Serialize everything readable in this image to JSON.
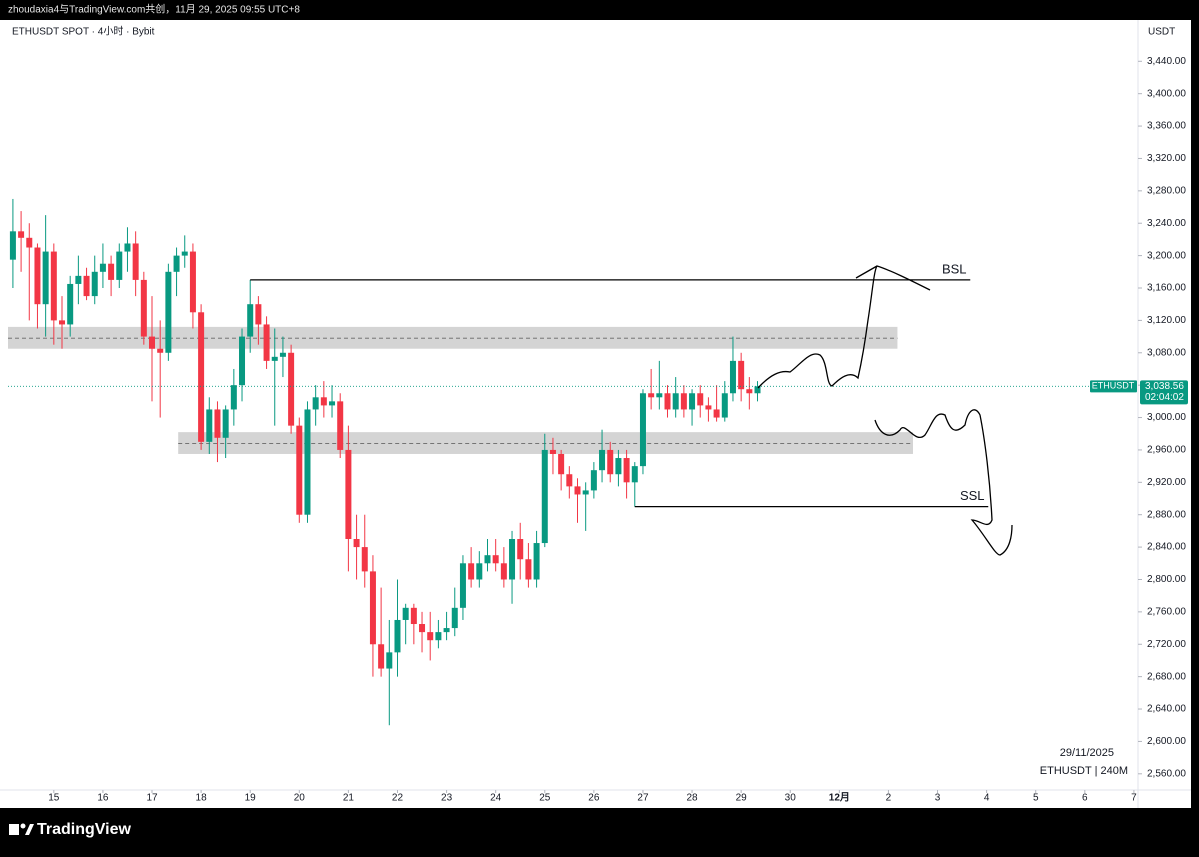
{
  "header": {
    "attribution": "zhoudaxia4与TradingView.com共创，11月 29, 2025 09:55 UTC+8"
  },
  "footer": {
    "brand": "TradingView"
  },
  "chart_data": {
    "type": "candlestick",
    "symbol": "ETHUSDT SPOT · 4小时 · Bybit",
    "currency": "USDT",
    "up_color": "#089981",
    "down_color": "#f23645",
    "xlim": [
      -5.6,
      132.5
    ],
    "ylim": [
      2540,
      3491
    ],
    "xticks": [
      {
        "value": 0,
        "label": "15"
      },
      {
        "value": 6,
        "label": "16"
      },
      {
        "value": 12,
        "label": "17"
      },
      {
        "value": 18,
        "label": "18"
      },
      {
        "value": 24,
        "label": "19"
      },
      {
        "value": 30,
        "label": "20"
      },
      {
        "value": 36,
        "label": "21"
      },
      {
        "value": 42,
        "label": "22"
      },
      {
        "value": 48,
        "label": "23"
      },
      {
        "value": 54,
        "label": "24"
      },
      {
        "value": 60,
        "label": "25"
      },
      {
        "value": 66,
        "label": "26"
      },
      {
        "value": 72,
        "label": "27"
      },
      {
        "value": 78,
        "label": "28"
      },
      {
        "value": 84,
        "label": "29"
      },
      {
        "value": 90,
        "label": "30"
      },
      {
        "value": 96,
        "label": "12月"
      },
      {
        "value": 102,
        "label": "2"
      },
      {
        "value": 108,
        "label": "3"
      },
      {
        "value": 114,
        "label": "4"
      },
      {
        "value": 120,
        "label": "5"
      },
      {
        "value": 126,
        "label": "6"
      },
      {
        "value": 132,
        "label": "7"
      }
    ],
    "yticks": [
      {
        "value": 2560,
        "label": "2,560.00"
      },
      {
        "value": 2600,
        "label": "2,600.00"
      },
      {
        "value": 2640,
        "label": "2,640.00"
      },
      {
        "value": 2680,
        "label": "2,680.00"
      },
      {
        "value": 2720,
        "label": "2,720.00"
      },
      {
        "value": 2760,
        "label": "2,760.00"
      },
      {
        "value": 2800,
        "label": "2,800.00"
      },
      {
        "value": 2840,
        "label": "2,840.00"
      },
      {
        "value": 2880,
        "label": "2,880.00"
      },
      {
        "value": 2920,
        "label": "2,920.00"
      },
      {
        "value": 2960,
        "label": "2,960.00"
      },
      {
        "value": 3000,
        "label": "3,000.00"
      },
      {
        "value": 3040,
        "label": "3,040.00"
      },
      {
        "value": 3080,
        "label": "3,080.00"
      },
      {
        "value": 3120,
        "label": "3,120.00"
      },
      {
        "value": 3160,
        "label": "3,160.00"
      },
      {
        "value": 3200,
        "label": "3,200.00"
      },
      {
        "value": 3240,
        "label": "3,240.00"
      },
      {
        "value": 3280,
        "label": "3,280.00"
      },
      {
        "value": 3320,
        "label": "3,320.00"
      },
      {
        "value": 3360,
        "label": "3,360.00"
      },
      {
        "value": 3400,
        "label": "3,400.00"
      },
      {
        "value": 3440,
        "label": "3,440.00"
      }
    ],
    "x": [
      -5,
      -4,
      -3,
      -2,
      -1,
      0,
      1,
      2,
      3,
      4,
      5,
      6,
      7,
      8,
      9,
      10,
      11,
      12,
      13,
      14,
      15,
      16,
      17,
      18,
      19,
      20,
      21,
      22,
      23,
      24,
      25,
      26,
      27,
      28,
      29,
      30,
      31,
      32,
      33,
      34,
      35,
      36,
      37,
      38,
      39,
      40,
      41,
      42,
      43,
      44,
      45,
      46,
      47,
      48,
      49,
      50,
      51,
      52,
      53,
      54,
      55,
      56,
      57,
      58,
      59,
      60,
      61,
      62,
      63,
      64,
      65,
      66,
      67,
      68,
      69,
      70,
      71,
      72,
      73,
      74,
      75,
      76,
      77,
      78,
      79,
      80,
      81,
      82,
      83,
      84,
      85,
      86
    ],
    "open": [
      3195,
      3230,
      3222,
      3210,
      3140,
      3205,
      3120,
      3115,
      3165,
      3175,
      3150,
      3180,
      3190,
      3170,
      3205,
      3215,
      3170,
      3100,
      3085,
      3080,
      3180,
      3200,
      3205,
      3130,
      2970,
      3010,
      2975,
      3010,
      3040,
      3100,
      3140,
      3115,
      3070,
      3075,
      3080,
      2990,
      2880,
      3010,
      3025,
      3015,
      3020,
      2960,
      2850,
      2840,
      2810,
      2720,
      2690,
      2710,
      2750,
      2765,
      2745,
      2735,
      2725,
      2735,
      2740,
      2765,
      2820,
      2800,
      2820,
      2830,
      2820,
      2800,
      2850,
      2825,
      2800,
      2845,
      2960,
      2955,
      2930,
      2915,
      2905,
      2910,
      2935,
      2960,
      2930,
      2950,
      2920,
      2940,
      3030,
      3025,
      3030,
      3010,
      3030,
      3010,
      3030,
      3015,
      3010,
      3000,
      3030,
      3070,
      3035,
      3030
    ],
    "high": [
      3270,
      3255,
      3240,
      3215,
      3250,
      3215,
      3150,
      3175,
      3200,
      3185,
      3200,
      3215,
      3200,
      3215,
      3235,
      3230,
      3180,
      3150,
      3120,
      3190,
      3210,
      3225,
      3215,
      3140,
      3025,
      3020,
      3015,
      3060,
      3110,
      3170,
      3150,
      3125,
      3110,
      3100,
      3090,
      3000,
      3020,
      3040,
      3045,
      3040,
      3030,
      2990,
      2880,
      2880,
      2830,
      2790,
      2750,
      2800,
      2770,
      2770,
      2760,
      2760,
      2750,
      2760,
      2790,
      2830,
      2840,
      2835,
      2850,
      2850,
      2840,
      2860,
      2870,
      2845,
      2860,
      2980,
      2975,
      2960,
      2940,
      2925,
      2920,
      2945,
      2985,
      2970,
      2960,
      2960,
      2945,
      3035,
      3060,
      3070,
      3040,
      3050,
      3040,
      3035,
      3040,
      3025,
      3040,
      3045,
      3100,
      3080,
      3050,
      3045
    ],
    "low": [
      3160,
      3180,
      3120,
      3110,
      3100,
      3090,
      3085,
      3100,
      3140,
      3145,
      3140,
      3160,
      3150,
      3160,
      3180,
      3150,
      3090,
      3020,
      3000,
      3070,
      3150,
      3185,
      3110,
      2960,
      2955,
      2945,
      2950,
      2990,
      3020,
      3080,
      3090,
      3060,
      2990,
      3050,
      2980,
      2870,
      2870,
      2990,
      3000,
      3000,
      2950,
      2810,
      2800,
      2790,
      2680,
      2680,
      2620,
      2680,
      2720,
      2720,
      2710,
      2700,
      2715,
      2725,
      2730,
      2750,
      2790,
      2790,
      2810,
      2810,
      2790,
      2770,
      2800,
      2790,
      2790,
      2840,
      2930,
      2910,
      2900,
      2870,
      2860,
      2900,
      2920,
      2920,
      2915,
      2900,
      2890,
      2930,
      3010,
      3010,
      3000,
      3000,
      3000,
      2990,
      3000,
      2995,
      2995,
      2995,
      3020,
      3020,
      3010,
      3020
    ],
    "close": [
      3230,
      3222,
      3210,
      3140,
      3205,
      3120,
      3115,
      3165,
      3175,
      3150,
      3180,
      3190,
      3170,
      3205,
      3215,
      3170,
      3100,
      3085,
      3080,
      3180,
      3200,
      3205,
      3130,
      2970,
      3010,
      2975,
      3010,
      3040,
      3100,
      3140,
      3115,
      3070,
      3075,
      3080,
      2990,
      2880,
      3010,
      3025,
      3015,
      3020,
      2960,
      2850,
      2840,
      2810,
      2720,
      2690,
      2710,
      2750,
      2765,
      2745,
      2735,
      2725,
      2735,
      2740,
      2765,
      2820,
      2800,
      2820,
      2830,
      2820,
      2800,
      2850,
      2825,
      2800,
      2845,
      2960,
      2955,
      2930,
      2915,
      2905,
      2910,
      2935,
      2960,
      2930,
      2950,
      2920,
      2940,
      3030,
      3025,
      3030,
      3010,
      3030,
      3010,
      3030,
      3015,
      3010,
      3000,
      3030,
      3070,
      3035,
      3030,
      3038.56
    ],
    "last_price": {
      "value": 3038.56,
      "label": "3,038.56"
    },
    "countdown": "02:04:02",
    "zones": [
      {
        "low": 3085,
        "high": 3112,
        "mid": 3098,
        "x0": -5.6,
        "x1": 103.1
      },
      {
        "low": 2955,
        "high": 2982,
        "mid": 2968,
        "x0": 15.2,
        "x1": 105.0
      }
    ],
    "levels": [
      {
        "label": "BSL",
        "value": 3170,
        "x0": 24,
        "x1": 112
      },
      {
        "label": "SSL",
        "value": 2890,
        "x0": 71,
        "x1": 114.2
      }
    ],
    "date_stamp": "29/11/2025",
    "interval_stamp": "ETHUSDT | 240M"
  }
}
